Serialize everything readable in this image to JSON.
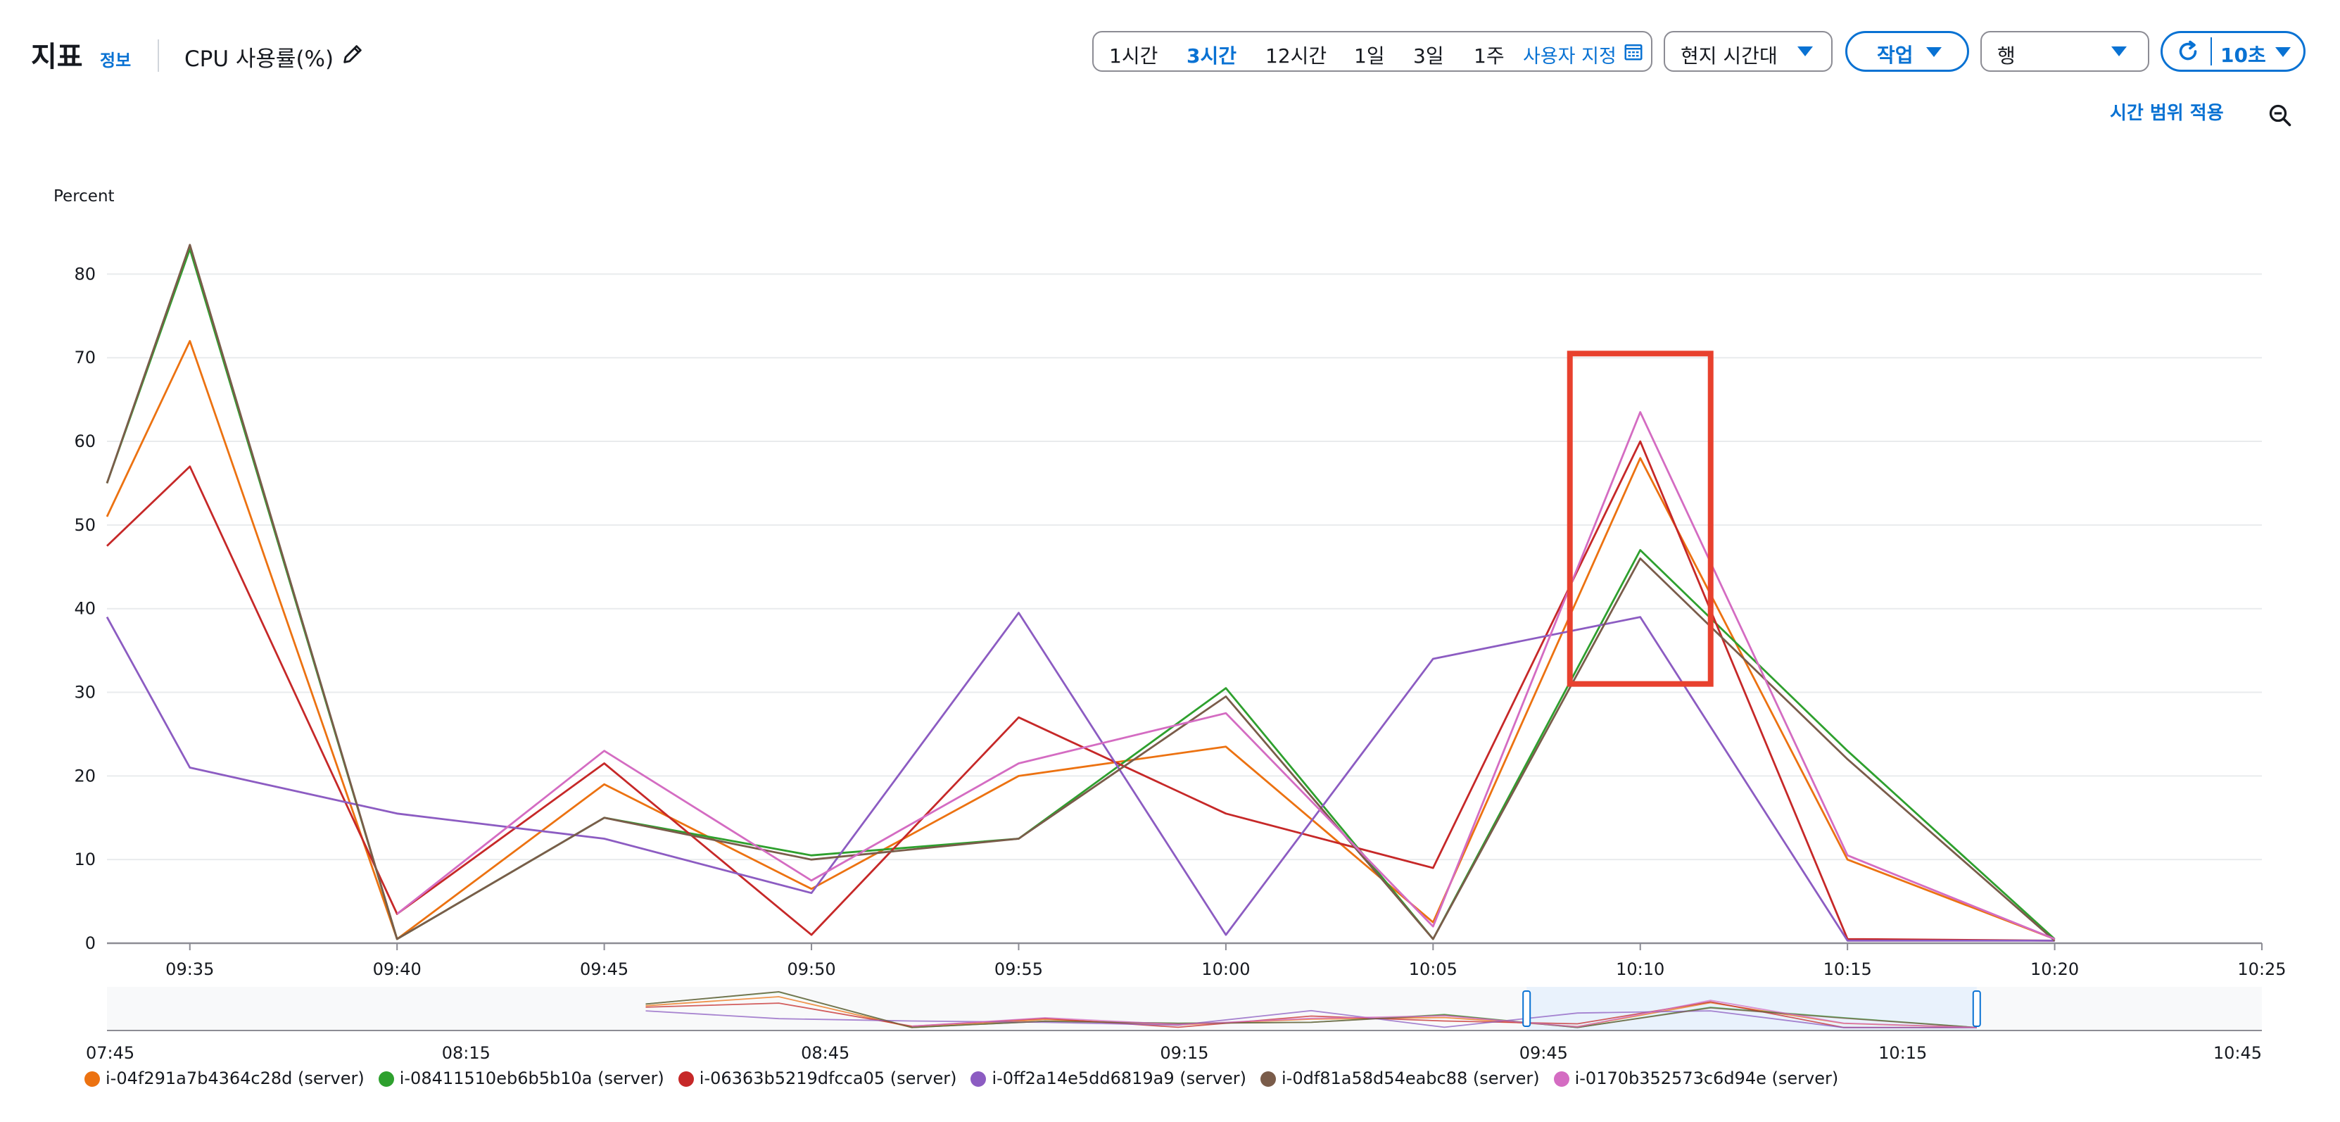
{
  "header": {
    "title": "지표",
    "info_link": "정보",
    "metric_name": "CPU 사용률(%)",
    "time_ranges": [
      "1시간",
      "3시간",
      "12시간",
      "1일",
      "3일",
      "1주"
    ],
    "active_range_index": 1,
    "custom_range": "사용자 지정",
    "timezone": "현지 시간대",
    "actions": "작업",
    "view": "행",
    "refresh_interval": "10초"
  },
  "panel": {
    "apply_time_range": "시간 범위 적용"
  },
  "chart_data": {
    "type": "line",
    "ylabel": "Percent",
    "ylim": [
      0,
      85
    ],
    "yticks": [
      0,
      10,
      20,
      30,
      40,
      50,
      60,
      70,
      80
    ],
    "x": [
      "09:33",
      "09:35",
      "09:40",
      "09:45",
      "09:50",
      "09:55",
      "10:00",
      "10:05",
      "10:10",
      "10:15",
      "10:20"
    ],
    "xticks": [
      "09:35",
      "09:40",
      "09:45",
      "09:50",
      "09:55",
      "10:00",
      "10:05",
      "10:10",
      "10:15",
      "10:20",
      "10:25"
    ],
    "grid": true,
    "legend_position": "bottom",
    "series": [
      {
        "name": "i-04f291a7b4364c28d (server)",
        "color": "#ec7211",
        "values": [
          51,
          72,
          0.5,
          19,
          6.5,
          20,
          23.5,
          2.5,
          58,
          10,
          0.5
        ]
      },
      {
        "name": "i-08411510eb6b5b10a (server)",
        "color": "#2ea02e",
        "values": [
          55,
          83,
          0.5,
          15,
          10.5,
          12.5,
          30.5,
          0.5,
          47,
          23,
          0.5
        ]
      },
      {
        "name": "i-06363b5219dfcca05 (server)",
        "color": "#c62828",
        "values": [
          47.5,
          57,
          3.5,
          21.5,
          1,
          27,
          15.5,
          9,
          60,
          0.5,
          0.3
        ]
      },
      {
        "name": "i-0ff2a14e5dd6819a9 (server)",
        "color": "#8c5cc2",
        "values": [
          39,
          21,
          15.5,
          12.5,
          6,
          39.5,
          1,
          34,
          39,
          0.3,
          0.3
        ]
      },
      {
        "name": "i-0df81a58d54eabc88 (server)",
        "color": "#7a5c4a",
        "values": [
          55,
          83.5,
          0.5,
          15,
          10,
          12.5,
          29.5,
          0.5,
          46,
          22,
          0.3
        ]
      },
      {
        "name": "i-0170b352573c6d94e (server)",
        "color": "#d46cc2",
        "values": [
          null,
          null,
          3.5,
          23,
          7.5,
          21.5,
          27.5,
          2,
          63.5,
          10.5,
          0.5
        ]
      }
    ],
    "overview": {
      "xticks": [
        "07:45",
        "08:15",
        "08:45",
        "09:15",
        "09:45",
        "10:15",
        "10:45"
      ]
    }
  }
}
